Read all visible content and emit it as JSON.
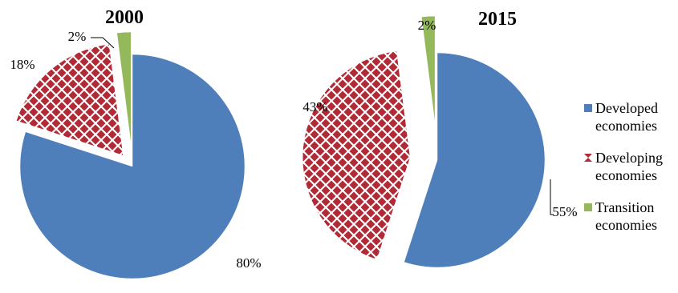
{
  "chart_data": [
    {
      "type": "pie",
      "title": "2000",
      "slices": [
        {
          "name": "Developed economies",
          "value": 80,
          "label": "80%"
        },
        {
          "name": "Developing economies",
          "value": 18,
          "label": "18%"
        },
        {
          "name": "Transition economies",
          "value": 2,
          "label": "2%"
        }
      ]
    },
    {
      "type": "pie",
      "title": "2015",
      "slices": [
        {
          "name": "Developed economies",
          "value": 55,
          "label": "55%"
        },
        {
          "name": "Developing economies",
          "value": 43,
          "label": "43%"
        },
        {
          "name": "Transition economies",
          "value": 2,
          "label": "2%"
        }
      ]
    }
  ],
  "legend": {
    "placement": "right",
    "items": [
      {
        "line1": "Developed",
        "line2": "economies",
        "color": "#4f7fba",
        "pattern": "solid"
      },
      {
        "line1": "Developing",
        "line2": "economies",
        "color": "#b22a35",
        "pattern": "diamond-check"
      },
      {
        "line1": "Transition",
        "line2": "economies",
        "color": "#93b95a",
        "pattern": "solid"
      }
    ]
  },
  "colors": {
    "developed": "#4f7fba",
    "developing": "#b22a35",
    "transition": "#93b95a"
  }
}
